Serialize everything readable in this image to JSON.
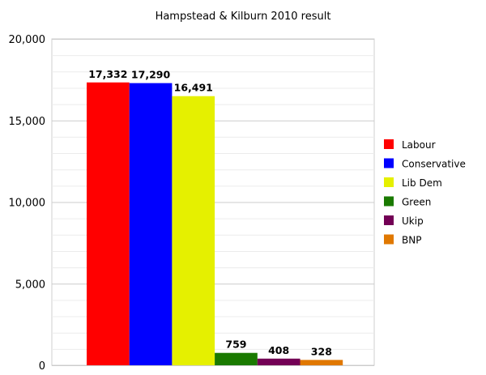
{
  "chart_data": {
    "type": "bar",
    "title": "Hampstead & Kilburn 2010 result",
    "xlabel": "",
    "ylabel": "",
    "ylim": [
      0,
      20000
    ],
    "yticks": [
      "0",
      "5,000",
      "10,000",
      "15,000",
      "20,000"
    ],
    "ytick_values": [
      0,
      5000,
      10000,
      15000,
      20000
    ],
    "grid": true,
    "legend_position": "right",
    "series": [
      {
        "name": "Labour",
        "value": 17332,
        "label": "17,332",
        "color": "#ff0000"
      },
      {
        "name": "Conservative",
        "value": 17290,
        "label": "17,290",
        "color": "#0000ff"
      },
      {
        "name": "Lib Dem",
        "value": 16491,
        "label": "16,491",
        "color": "#e5f000"
      },
      {
        "name": "Green",
        "value": 759,
        "label": "759",
        "color": "#1a7a00"
      },
      {
        "name": "Ukip",
        "value": 408,
        "label": "408",
        "color": "#730055"
      },
      {
        "name": "BNP",
        "value": 328,
        "label": "328",
        "color": "#e07800"
      }
    ]
  }
}
